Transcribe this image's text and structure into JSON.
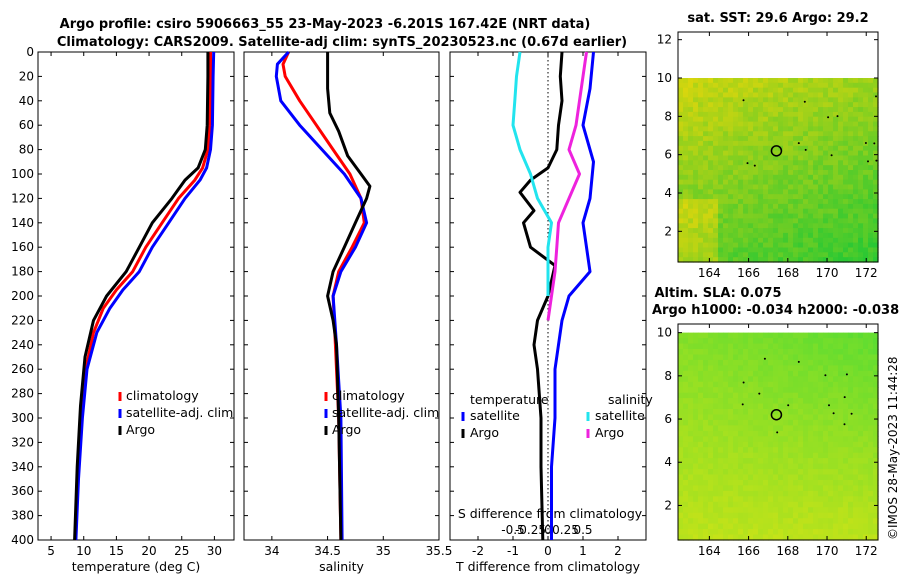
{
  "header": {
    "title_line1": "Argo profile: csiro 5906663_55 23-May-2023 -6.201S 167.42E (NRT data)",
    "title_line2": "Climatology: CARS2009. Satellite-adj clim: synTS_20230523.nc (0.67d earlier)"
  },
  "colors": {
    "climatology": "#ff0000",
    "satellite": "#0000ff",
    "argo": "#000000",
    "sat_salinity": "#22e4ee",
    "argo_salinity": "#ee22dd"
  },
  "chart_data": [
    {
      "id": "temperature",
      "type": "line",
      "xlabel": "temperature (deg C)",
      "xlim": [
        3,
        33
      ],
      "ylim": [
        400,
        0
      ],
      "x_ticks": [
        5,
        10,
        15,
        20,
        25,
        30
      ],
      "depth_ticks": [
        0,
        20,
        40,
        60,
        80,
        100,
        120,
        140,
        160,
        180,
        200,
        220,
        240,
        260,
        280,
        300,
        320,
        340,
        360,
        380,
        400
      ],
      "legend": [
        "climatology",
        "satellite-adj. clim",
        "Argo"
      ],
      "series": [
        {
          "name": "climatology",
          "color": "#ff0000",
          "points": [
            [
              29.4,
              0
            ],
            [
              29.4,
              20
            ],
            [
              29.3,
              60
            ],
            [
              29.0,
              80
            ],
            [
              28.2,
              95
            ],
            [
              27.0,
              105
            ],
            [
              24.5,
              120
            ],
            [
              22.0,
              140
            ],
            [
              19.5,
              160
            ],
            [
              17.5,
              180
            ],
            [
              15.0,
              195
            ],
            [
              13.0,
              210
            ],
            [
              11.5,
              230
            ],
            [
              10.3,
              260
            ],
            [
              9.6,
              300
            ],
            [
              9.1,
              350
            ],
            [
              8.7,
              400
            ]
          ]
        },
        {
          "name": "satellite-adj. clim",
          "color": "#0000ff",
          "points": [
            [
              29.9,
              0
            ],
            [
              29.8,
              20
            ],
            [
              29.7,
              60
            ],
            [
              29.4,
              80
            ],
            [
              28.8,
              95
            ],
            [
              27.8,
              105
            ],
            [
              25.5,
              120
            ],
            [
              23.0,
              140
            ],
            [
              20.5,
              160
            ],
            [
              18.5,
              180
            ],
            [
              16.0,
              195
            ],
            [
              14.0,
              210
            ],
            [
              12.0,
              230
            ],
            [
              10.5,
              260
            ],
            [
              9.8,
              300
            ],
            [
              9.2,
              350
            ],
            [
              8.8,
              400
            ]
          ]
        },
        {
          "name": "Argo",
          "color": "#000000",
          "points": [
            [
              29.0,
              0
            ],
            [
              29.0,
              20
            ],
            [
              28.9,
              60
            ],
            [
              28.6,
              80
            ],
            [
              27.5,
              95
            ],
            [
              25.5,
              105
            ],
            [
              23.5,
              120
            ],
            [
              20.5,
              140
            ],
            [
              18.5,
              160
            ],
            [
              16.5,
              180
            ],
            [
              13.5,
              200
            ],
            [
              11.5,
              220
            ],
            [
              10.2,
              250
            ],
            [
              9.5,
              290
            ],
            [
              9.0,
              340
            ],
            [
              8.6,
              400
            ]
          ]
        }
      ]
    },
    {
      "id": "salinity",
      "type": "line",
      "xlabel": "salinity",
      "xlim": [
        33.75,
        35.5
      ],
      "ylim": [
        400,
        0
      ],
      "x_ticks": [
        34,
        34.5,
        35,
        35.5
      ],
      "x_tick_labels": [
        "34",
        "34.5",
        "35",
        "35.5"
      ],
      "legend": [
        "climatology",
        "satellite-adj. clim",
        "Argo"
      ],
      "series": [
        {
          "name": "climatology",
          "color": "#ff0000",
          "points": [
            [
              34.15,
              0
            ],
            [
              34.1,
              10
            ],
            [
              34.12,
              20
            ],
            [
              34.25,
              40
            ],
            [
              34.4,
              60
            ],
            [
              34.55,
              80
            ],
            [
              34.7,
              100
            ],
            [
              34.8,
              120
            ],
            [
              34.83,
              140
            ],
            [
              34.72,
              160
            ],
            [
              34.6,
              180
            ],
            [
              34.55,
              200
            ],
            [
              34.57,
              240
            ],
            [
              34.6,
              300
            ],
            [
              34.62,
              400
            ]
          ]
        },
        {
          "name": "satellite-adj. clim",
          "color": "#0000ff",
          "points": [
            [
              34.15,
              0
            ],
            [
              34.05,
              10
            ],
            [
              34.04,
              20
            ],
            [
              34.08,
              40
            ],
            [
              34.25,
              60
            ],
            [
              34.45,
              80
            ],
            [
              34.65,
              100
            ],
            [
              34.8,
              120
            ],
            [
              34.85,
              140
            ],
            [
              34.75,
              160
            ],
            [
              34.62,
              180
            ],
            [
              34.55,
              200
            ],
            [
              34.58,
              240
            ],
            [
              34.62,
              300
            ],
            [
              34.63,
              400
            ]
          ]
        },
        {
          "name": "Argo",
          "color": "#000000",
          "points": [
            [
              34.5,
              0
            ],
            [
              34.5,
              30
            ],
            [
              34.52,
              50
            ],
            [
              34.6,
              65
            ],
            [
              34.68,
              85
            ],
            [
              34.8,
              100
            ],
            [
              34.88,
              110
            ],
            [
              34.85,
              120
            ],
            [
              34.75,
              140
            ],
            [
              34.65,
              160
            ],
            [
              34.55,
              180
            ],
            [
              34.5,
              200
            ],
            [
              34.55,
              220
            ],
            [
              34.58,
              240
            ],
            [
              34.6,
              300
            ],
            [
              34.62,
              400
            ]
          ]
        }
      ]
    },
    {
      "id": "differences",
      "type": "line",
      "xlabel": "T difference from climatology",
      "xlabel2": "S difference from climatology",
      "xlim": [
        -2.8,
        2.8
      ],
      "ylim": [
        400,
        0
      ],
      "x_ticks": [
        -2,
        -1,
        0,
        1,
        2
      ],
      "s_ticks": [
        -0.5,
        -0.25,
        0,
        0.25,
        0.5
      ],
      "s_tick_labels": [
        "-0.5",
        "-0.25",
        "0",
        "0.25",
        "0.5"
      ],
      "legend_group_1": "temperature",
      "legend_group_2": "salinity",
      "legend_satellite": "satellite",
      "legend_argo": "Argo",
      "series": [
        {
          "name": "T satellite",
          "color": "#0000ff",
          "points": [
            [
              1.3,
              0
            ],
            [
              1.2,
              30
            ],
            [
              1.0,
              60
            ],
            [
              1.3,
              90
            ],
            [
              1.2,
              120
            ],
            [
              1.0,
              140
            ],
            [
              1.1,
              160
            ],
            [
              1.2,
              180
            ],
            [
              0.6,
              200
            ],
            [
              0.4,
              220
            ],
            [
              0.2,
              260
            ],
            [
              0.2,
              300
            ],
            [
              0.1,
              340
            ],
            [
              0.1,
              400
            ]
          ]
        },
        {
          "name": "T Argo",
          "color": "#000000",
          "points": [
            [
              0.4,
              0
            ],
            [
              0.35,
              20
            ],
            [
              0.4,
              40
            ],
            [
              0.3,
              60
            ],
            [
              0.25,
              80
            ],
            [
              0.0,
              95
            ],
            [
              -0.5,
              105
            ],
            [
              -0.8,
              115
            ],
            [
              -0.4,
              130
            ],
            [
              -0.7,
              140
            ],
            [
              -0.5,
              160
            ],
            [
              0.2,
              175
            ],
            [
              0.0,
              200
            ],
            [
              -0.3,
              220
            ],
            [
              -0.4,
              240
            ],
            [
              -0.3,
              260
            ],
            [
              -0.2,
              300
            ],
            [
              -0.2,
              340
            ],
            [
              -0.15,
              400
            ]
          ]
        },
        {
          "name": "S satellite",
          "color": "#22e4ee",
          "points": [
            [
              -0.8,
              0
            ],
            [
              -0.9,
              20
            ],
            [
              -0.95,
              40
            ],
            [
              -1.0,
              60
            ],
            [
              -0.8,
              80
            ],
            [
              -0.5,
              100
            ],
            [
              -0.3,
              120
            ],
            [
              0.1,
              140
            ],
            [
              0.0,
              160
            ],
            [
              0.0,
              180
            ],
            [
              0.0,
              200
            ]
          ]
        },
        {
          "name": "S Argo",
          "color": "#ee22dd",
          "points": [
            [
              1.1,
              0
            ],
            [
              1.0,
              20
            ],
            [
              0.9,
              40
            ],
            [
              0.8,
              60
            ],
            [
              0.6,
              80
            ],
            [
              0.9,
              100
            ],
            [
              0.6,
              120
            ],
            [
              0.3,
              140
            ],
            [
              0.25,
              160
            ],
            [
              0.2,
              180
            ],
            [
              0.1,
              200
            ],
            [
              0.0,
              220
            ]
          ]
        }
      ]
    },
    {
      "id": "sst_map",
      "type": "heatmap",
      "title": "sat. SST: 29.6 Argo: 29.2",
      "x_ticks": [
        164,
        166,
        168,
        170,
        172
      ],
      "y_ticks": [
        2,
        4,
        6,
        8,
        10,
        12
      ],
      "xlim": [
        162.4,
        172.6
      ],
      "ylim": [
        0.4,
        12.4
      ],
      "data_top": 10,
      "marker": [
        167.42,
        6.2
      ]
    },
    {
      "id": "sla_map",
      "type": "heatmap",
      "title": "Altim. SLA: 0.075",
      "subtitle": "Argo h1000: -0.034 h2000: -0.038",
      "x_ticks": [
        164,
        166,
        168,
        170,
        172
      ],
      "y_ticks": [
        2,
        4,
        6,
        8,
        10
      ],
      "xlim": [
        162.4,
        172.6
      ],
      "ylim": [
        0.4,
        10.4
      ],
      "data_top": 10,
      "marker": [
        167.42,
        6.2
      ]
    }
  ],
  "footer": {
    "credit": "©IMOS 28-May-2023 11:44:28"
  }
}
